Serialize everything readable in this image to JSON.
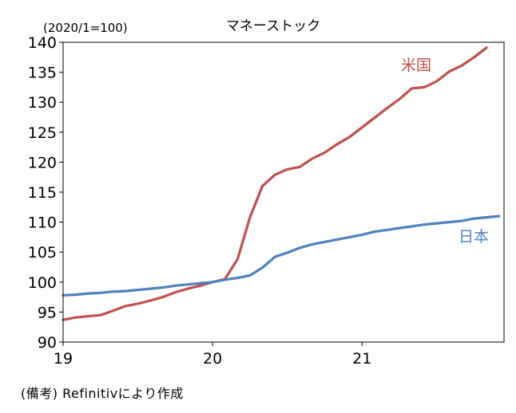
{
  "chart_data": {
    "type": "line",
    "title": "マネーストック",
    "unit_label": "(2020/1=100)",
    "ylim": [
      90,
      140
    ],
    "y_ticks": [
      90,
      95,
      100,
      105,
      110,
      115,
      120,
      125,
      130,
      135,
      140
    ],
    "xlim": [
      2019.0,
      2021.95
    ],
    "x_ticks": [
      {
        "value": 2019,
        "label": "19"
      },
      {
        "value": 2020,
        "label": "20"
      },
      {
        "value": 2021,
        "label": "21"
      }
    ],
    "grid": false,
    "series": [
      {
        "name": "米国",
        "color": "#c0504d",
        "x": [
          2019.0,
          2019.083,
          2019.167,
          2019.25,
          2019.333,
          2019.417,
          2019.5,
          2019.583,
          2019.667,
          2019.75,
          2019.833,
          2019.917,
          2020.0,
          2020.083,
          2020.167,
          2020.25,
          2020.333,
          2020.417,
          2020.5,
          2020.583,
          2020.667,
          2020.75,
          2020.833,
          2020.917,
          2021.0,
          2021.083,
          2021.167,
          2021.25,
          2021.333,
          2021.417,
          2021.5,
          2021.583,
          2021.667,
          2021.75,
          2021.833
        ],
        "values": [
          93.7,
          94.1,
          94.3,
          94.5,
          95.2,
          96.0,
          96.4,
          96.9,
          97.5,
          98.3,
          98.9,
          99.4,
          100.0,
          100.5,
          103.8,
          110.8,
          116.0,
          117.9,
          118.8,
          119.2,
          120.6,
          121.6,
          123.0,
          124.2,
          125.8,
          127.4,
          129.0,
          130.5,
          132.3,
          132.5,
          133.5,
          135.1,
          136.1,
          137.5,
          139.1
        ]
      },
      {
        "name": "日本",
        "color": "#4f81bd",
        "x": [
          2019.0,
          2019.083,
          2019.167,
          2019.25,
          2019.333,
          2019.417,
          2019.5,
          2019.583,
          2019.667,
          2019.75,
          2019.833,
          2019.917,
          2020.0,
          2020.083,
          2020.167,
          2020.25,
          2020.333,
          2020.417,
          2020.5,
          2020.583,
          2020.667,
          2020.75,
          2020.833,
          2020.917,
          2021.0,
          2021.083,
          2021.167,
          2021.25,
          2021.333,
          2021.417,
          2021.5,
          2021.583,
          2021.667,
          2021.75,
          2021.833,
          2021.917
        ],
        "values": [
          97.8,
          97.9,
          98.1,
          98.2,
          98.4,
          98.5,
          98.7,
          98.9,
          99.1,
          99.4,
          99.6,
          99.8,
          100.0,
          100.4,
          100.7,
          101.1,
          102.4,
          104.2,
          104.9,
          105.7,
          106.3,
          106.7,
          107.1,
          107.5,
          107.9,
          108.4,
          108.7,
          109.0,
          109.3,
          109.6,
          109.8,
          110.0,
          110.2,
          110.6,
          110.8,
          111.0
        ]
      }
    ]
  },
  "note": "(備考) Refinitivにより作成"
}
